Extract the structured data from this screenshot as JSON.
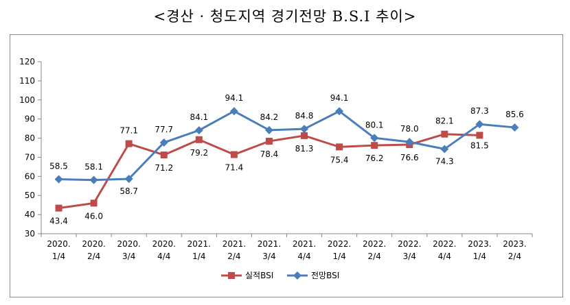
{
  "title": "<경산 · 청도지역 경기전망 B.S.I 추이>",
  "chart_data": {
    "type": "line",
    "categories": [
      [
        "2020.",
        "1/4"
      ],
      [
        "2020.",
        "2/4"
      ],
      [
        "2020.",
        "3/4"
      ],
      [
        "2020.",
        "4/4"
      ],
      [
        "2021.",
        "1/4"
      ],
      [
        "2021.",
        "2/4"
      ],
      [
        "2021.",
        "3/4"
      ],
      [
        "2021.",
        "4/4"
      ],
      [
        "2022.",
        "1/4"
      ],
      [
        "2022.",
        "2/4"
      ],
      [
        "2022.",
        "3/4"
      ],
      [
        "2022.",
        "4/4"
      ],
      [
        "2023.",
        "1/4"
      ],
      [
        "2023.",
        "2/4"
      ]
    ],
    "ylim": [
      30,
      120
    ],
    "yticks": [
      30,
      40,
      50,
      60,
      70,
      80,
      90,
      100,
      110,
      120
    ],
    "legend_position": "bottom",
    "series": [
      {
        "name": "실적BSI",
        "color": "#be4b48",
        "marker": "square",
        "values": [
          43.4,
          46.0,
          77.1,
          71.2,
          79.2,
          71.4,
          78.4,
          81.3,
          75.4,
          76.2,
          76.6,
          82.1,
          81.5,
          null
        ],
        "labels": [
          "43.4",
          "46.0",
          "77.1",
          "71.2",
          "79.2",
          "71.4",
          "78.4",
          "81.3",
          "75.4",
          "76.2",
          "76.6",
          "82.1",
          "81.5",
          null
        ]
      },
      {
        "name": "전망BSI",
        "color": "#4a7ebb",
        "marker": "diamond",
        "values": [
          58.5,
          58.1,
          58.7,
          77.7,
          84.1,
          94.1,
          84.2,
          84.8,
          94.1,
          80.1,
          78.0,
          74.3,
          87.3,
          85.6
        ],
        "labels": [
          "58.5",
          "58.1",
          "58.7",
          "77.7",
          "84.1",
          "94.1",
          "84.2",
          "84.8",
          "94.1",
          "80.1",
          "78.0",
          "74.3",
          "87.3",
          "85.6"
        ]
      }
    ]
  }
}
